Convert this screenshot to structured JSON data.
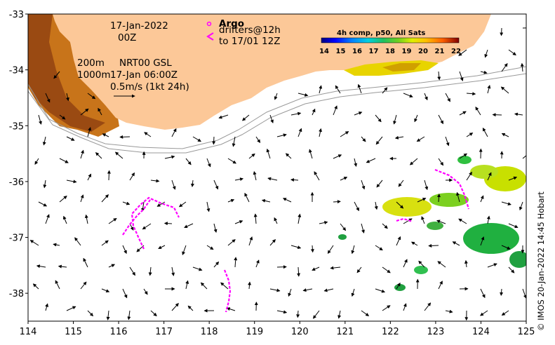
{
  "map": {
    "x_ticks": [
      "114",
      "115",
      "116",
      "117",
      "118",
      "119",
      "120",
      "121",
      "122",
      "123",
      "124",
      "125"
    ],
    "y_ticks": [
      "-33",
      "-34",
      "-35",
      "-36",
      "-37",
      "-38"
    ],
    "x_range": [
      114,
      125
    ],
    "y_range": [
      -38.5,
      -33
    ],
    "land_color": "#fcc898",
    "coast_color": "#ffffff",
    "arrow_color": "#000000",
    "drifter_color": "#ff00ff"
  },
  "annotations": {
    "date": "17-Jan-2022",
    "hour": "00Z",
    "iso200": "200m",
    "iso1000": "1000m",
    "product": "NRT00 GSL",
    "product_time": "17-Jan 06:00Z",
    "scale_arrow": "0.5m/s (1kt 24h)"
  },
  "legend": {
    "argo": "Argo",
    "drifters": "drifters@12h",
    "drifters_to": "to 17/01 12Z"
  },
  "colorbar": {
    "title": "4h comp, p50, All Sats",
    "ticks": [
      "14",
      "15",
      "16",
      "17",
      "18",
      "19",
      "20",
      "21",
      "22"
    ],
    "colors": [
      "#00007f",
      "#0000ff",
      "#0060ff",
      "#00c0ff",
      "#00e0a0",
      "#20c040",
      "#60d020",
      "#b0e020",
      "#f0f000",
      "#ffc000",
      "#ff7000",
      "#e02000",
      "#800000"
    ]
  },
  "credit": "© IMOS 20-Jan-2022 14:45 Hobart"
}
